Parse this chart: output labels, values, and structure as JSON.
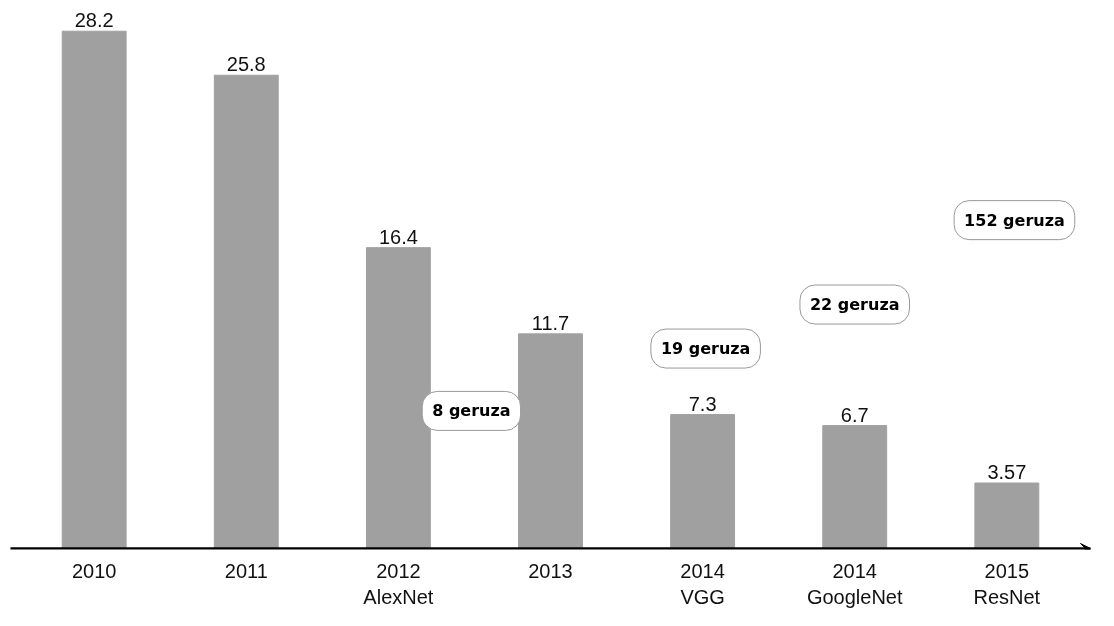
{
  "chart_data": {
    "type": "bar",
    "categories": [
      "2010",
      "2011",
      "2012\nAlexNet",
      "2013",
      "2014\nVGG",
      "2014\nGoogleNet",
      "2015\nResNet"
    ],
    "values": [
      28.2,
      25.8,
      16.4,
      11.7,
      7.3,
      6.7,
      3.57
    ],
    "color": "#a0a0a0",
    "data_labels": true,
    "annotations": [
      "8 geruza",
      "19 geruza",
      "22 geruza",
      "152 geruza"
    ]
  }
}
